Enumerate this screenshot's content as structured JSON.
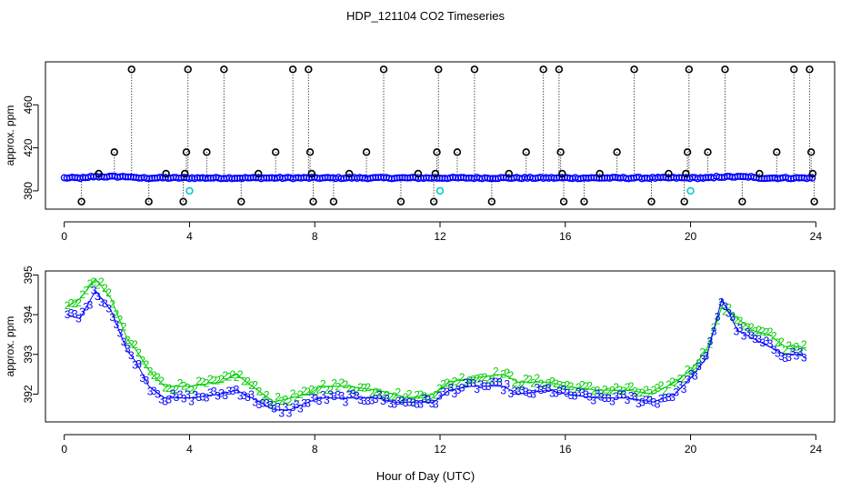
{
  "figure": {
    "title": "HDP_121104  CO2 Timeseries",
    "xlabel": "Hour of Day (UTC)"
  },
  "chart_data": [
    {
      "type": "scatter",
      "panel": "top",
      "title": "HDP_121104  CO2 Timeseries",
      "xlabel": "",
      "ylabel": "approx. ppm",
      "xlim": [
        -0.6,
        24.6
      ],
      "ylim": [
        363,
        500
      ],
      "xticks": [
        0,
        4,
        8,
        12,
        16,
        20,
        24
      ],
      "yticks": [
        380,
        420,
        460
      ],
      "colors": {
        "flagged": "#000000",
        "main": "#0000ff",
        "alt": "#00cccc"
      },
      "baseline_ppm": 392,
      "flagged_points": [
        {
          "x": 0.55,
          "y": 370
        },
        {
          "x": 1.1,
          "y": 396
        },
        {
          "x": 1.6,
          "y": 416
        },
        {
          "x": 2.15,
          "y": 493
        },
        {
          "x": 2.7,
          "y": 370
        },
        {
          "x": 3.25,
          "y": 396
        },
        {
          "x": 3.8,
          "y": 370
        },
        {
          "x": 3.85,
          "y": 396
        },
        {
          "x": 3.9,
          "y": 416
        },
        {
          "x": 3.95,
          "y": 493
        },
        {
          "x": 4.55,
          "y": 416
        },
        {
          "x": 5.1,
          "y": 493
        },
        {
          "x": 5.65,
          "y": 370
        },
        {
          "x": 6.2,
          "y": 396
        },
        {
          "x": 6.75,
          "y": 416
        },
        {
          "x": 7.3,
          "y": 493
        },
        {
          "x": 7.8,
          "y": 493
        },
        {
          "x": 7.85,
          "y": 416
        },
        {
          "x": 7.9,
          "y": 396
        },
        {
          "x": 7.95,
          "y": 370
        },
        {
          "x": 8.6,
          "y": 370
        },
        {
          "x": 9.1,
          "y": 396
        },
        {
          "x": 9.65,
          "y": 416
        },
        {
          "x": 10.2,
          "y": 493
        },
        {
          "x": 10.75,
          "y": 370
        },
        {
          "x": 11.3,
          "y": 396
        },
        {
          "x": 11.8,
          "y": 370
        },
        {
          "x": 11.85,
          "y": 396
        },
        {
          "x": 11.9,
          "y": 416
        },
        {
          "x": 11.95,
          "y": 493
        },
        {
          "x": 12.55,
          "y": 416
        },
        {
          "x": 13.1,
          "y": 493
        },
        {
          "x": 13.65,
          "y": 370
        },
        {
          "x": 14.2,
          "y": 396
        },
        {
          "x": 14.75,
          "y": 416
        },
        {
          "x": 15.3,
          "y": 493
        },
        {
          "x": 15.8,
          "y": 493
        },
        {
          "x": 15.85,
          "y": 416
        },
        {
          "x": 15.9,
          "y": 396
        },
        {
          "x": 15.95,
          "y": 370
        },
        {
          "x": 16.6,
          "y": 370
        },
        {
          "x": 17.1,
          "y": 396
        },
        {
          "x": 17.65,
          "y": 416
        },
        {
          "x": 18.2,
          "y": 493
        },
        {
          "x": 18.75,
          "y": 370
        },
        {
          "x": 19.3,
          "y": 396
        },
        {
          "x": 19.8,
          "y": 370
        },
        {
          "x": 19.85,
          "y": 396
        },
        {
          "x": 19.9,
          "y": 416
        },
        {
          "x": 19.95,
          "y": 493
        },
        {
          "x": 20.55,
          "y": 416
        },
        {
          "x": 21.1,
          "y": 493
        },
        {
          "x": 21.65,
          "y": 370
        },
        {
          "x": 22.2,
          "y": 396
        },
        {
          "x": 22.75,
          "y": 416
        },
        {
          "x": 23.3,
          "y": 493
        },
        {
          "x": 23.8,
          "y": 493
        },
        {
          "x": 23.85,
          "y": 416
        },
        {
          "x": 23.9,
          "y": 396
        },
        {
          "x": 23.95,
          "y": 370
        }
      ],
      "alt_points": [
        {
          "x": 4.0,
          "y": 380
        },
        {
          "x": 12.0,
          "y": 380
        },
        {
          "x": 20.0,
          "y": 380
        }
      ]
    },
    {
      "type": "line",
      "panel": "bottom",
      "xlabel": "Hour of Day (UTC)",
      "ylabel": "approx. ppm",
      "xlim": [
        -0.6,
        24.6
      ],
      "ylim": [
        391.3,
        395.1
      ],
      "xticks": [
        0,
        4,
        8,
        12,
        16,
        20,
        24
      ],
      "yticks": [
        392,
        393,
        394,
        395
      ],
      "series": [
        {
          "name": "2",
          "marker": "2",
          "color": "#00cc00",
          "x": [
            0.1,
            0.5,
            1.0,
            1.5,
            2.0,
            2.3,
            2.7,
            3.2,
            4.0,
            5.0,
            5.5,
            6.0,
            6.7,
            7.2,
            7.8,
            8.2,
            9.0,
            10.0,
            10.5,
            11.0,
            11.8,
            12.3,
            13.0,
            14.0,
            14.5,
            15.5,
            16.0,
            17.0,
            18.0,
            18.8,
            19.5,
            20.0,
            20.5,
            21.0,
            21.5,
            22.0,
            22.5,
            23.0,
            23.5,
            23.7
          ],
          "values": [
            394.2,
            394.4,
            394.9,
            394.4,
            393.4,
            393.1,
            392.6,
            392.2,
            392.2,
            392.3,
            392.5,
            392.2,
            391.8,
            391.9,
            392.0,
            392.2,
            392.2,
            392.1,
            392.0,
            391.9,
            392.0,
            392.3,
            392.4,
            392.5,
            392.3,
            392.3,
            392.2,
            392.1,
            392.1,
            392.0,
            392.3,
            392.6,
            393.1,
            394.2,
            393.9,
            393.6,
            393.5,
            393.2,
            393.2,
            393.1
          ]
        },
        {
          "name": "3",
          "marker": "3",
          "color": "#0000ff",
          "x": [
            0.1,
            0.5,
            1.0,
            1.5,
            2.0,
            2.3,
            2.7,
            3.2,
            4.0,
            5.0,
            5.5,
            6.0,
            6.7,
            7.2,
            7.8,
            8.2,
            9.0,
            10.0,
            10.5,
            11.0,
            11.8,
            12.3,
            13.0,
            14.0,
            14.5,
            15.5,
            16.0,
            17.0,
            18.0,
            18.8,
            19.5,
            20.0,
            20.5,
            21.0,
            21.5,
            22.0,
            22.5,
            23.0,
            23.5,
            23.7
          ],
          "values": [
            394.0,
            393.9,
            394.6,
            394.1,
            393.1,
            392.8,
            392.2,
            391.9,
            391.9,
            392.0,
            392.1,
            391.9,
            391.6,
            391.6,
            391.8,
            391.9,
            391.9,
            391.9,
            391.8,
            391.8,
            391.8,
            392.1,
            392.2,
            392.2,
            392.0,
            392.1,
            392.0,
            391.9,
            391.9,
            391.8,
            392.0,
            392.4,
            392.9,
            394.4,
            393.6,
            393.4,
            393.2,
            393.0,
            393.0,
            392.9
          ]
        }
      ]
    }
  ]
}
